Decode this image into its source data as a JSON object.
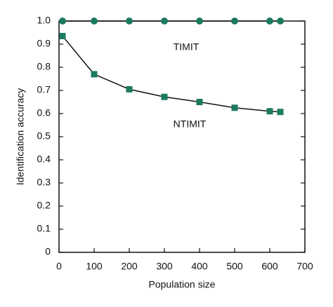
{
  "chart_data": {
    "type": "line",
    "xlabel": "Population size",
    "ylabel": "Identification accuracy",
    "xlim": [
      0,
      700
    ],
    "ylim": [
      0,
      1
    ],
    "xticks": [
      0,
      100,
      200,
      300,
      400,
      500,
      600,
      700
    ],
    "yticks": [
      0,
      0.1,
      0.2,
      0.3,
      0.4,
      0.5,
      0.6,
      0.7,
      0.8,
      0.9,
      {
        "value": 1,
        "label": "1.0"
      }
    ],
    "line_color": "#111111",
    "series": [
      {
        "name": "TIMIT",
        "color": "#1b7a5f",
        "marker": "circle",
        "x": [
          10,
          100,
          200,
          300,
          400,
          500,
          600,
          630
        ],
        "values": [
          1,
          1,
          1,
          1,
          1,
          1,
          1,
          1
        ]
      },
      {
        "name": "NTIMIT",
        "color": "#1b7a5f",
        "marker": "square",
        "x": [
          10,
          100,
          200,
          300,
          400,
          500,
          600,
          630
        ],
        "values": [
          0.935,
          0.77,
          0.705,
          0.672,
          0.65,
          0.625,
          0.61,
          0.607
        ]
      }
    ]
  }
}
